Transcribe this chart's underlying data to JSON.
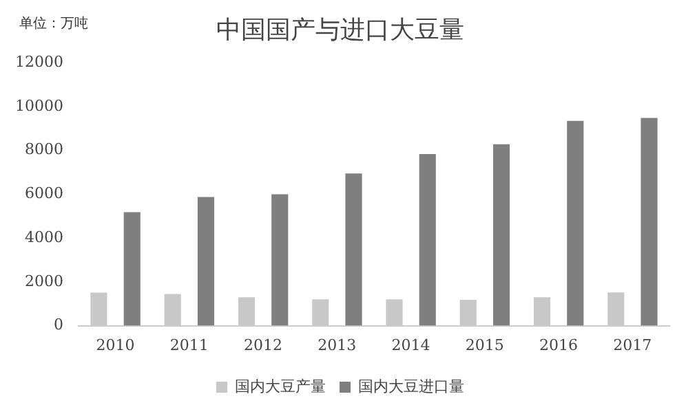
{
  "chart_data": {
    "type": "bar",
    "title": "中国国产与进口大豆量",
    "annotations": [
      "单位：万吨"
    ],
    "categories": [
      "2010",
      "2011",
      "2012",
      "2013",
      "2014",
      "2015",
      "2016",
      "2017"
    ],
    "series": [
      {
        "name": "国内大豆产量",
        "color": "#c8c8c8",
        "values": [
          1510,
          1450,
          1300,
          1200,
          1200,
          1180,
          1300,
          1520
        ]
      },
      {
        "name": "国内大豆进口量",
        "color": "#7f7f7f",
        "values": [
          5180,
          5870,
          6000,
          6950,
          7830,
          8280,
          9350,
          9480
        ]
      }
    ],
    "ylim": [
      0,
      12000
    ],
    "yticks": [
      0,
      2000,
      4000,
      6000,
      8000,
      10000,
      12000
    ],
    "grid": false,
    "legend": "bottom"
  }
}
